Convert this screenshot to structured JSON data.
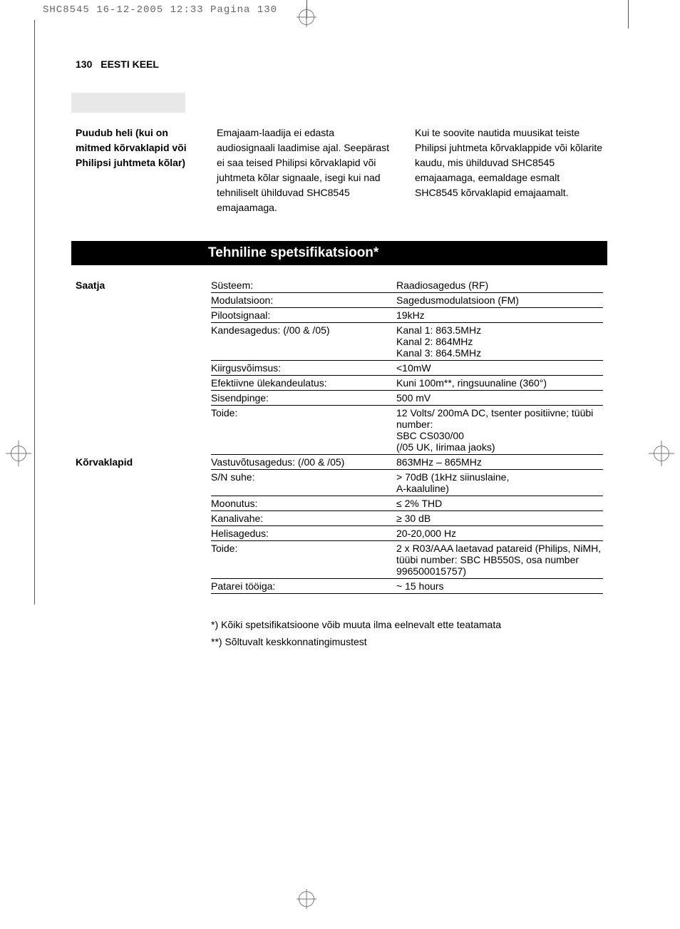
{
  "print_header": "SHC8545  16-12-2005  12:33  Pagina 130",
  "running_head": {
    "page_number": "130",
    "language": "EESTI KEEL"
  },
  "grey_block_color": "#e8e8e8",
  "troubleshoot": {
    "label": "Puudub heli (kui on mitmed kõrvaklapid või Philipsi juhtmeta kõlar)",
    "col1": "Emajaam-laadija ei edasta audiosignaali laadimise ajal. Seepärast ei saa teised Philipsi kõrvaklapid või juhtmeta kõlar signaale, isegi kui nad tehniliselt ühilduvad SHC8545 emajaamaga.",
    "col2": "Kui te soovite nautida muusikat teiste Philipsi juhtmeta kõrvaklappide või kõlarite kaudu, mis ühilduvad SHC8545 emajaamaga, eemaldage esmalt SHC8545 kõrvaklapid emajaamalt."
  },
  "section_title": "Tehniline spetsifikatsioon*",
  "spec": {
    "transmitter": {
      "name": "Saatja",
      "rows": [
        {
          "k": "Süsteem:",
          "v": "Raadiosagedus  (RF)"
        },
        {
          "k": "Modulatsioon:",
          "v": "Sagedusmodulatsioon (FM)"
        },
        {
          "k": "Pilootsignaal:",
          "v": "19kHz"
        },
        {
          "k": "Kandesagedus: (/00 & /05)",
          "v": "Kanal 1: 863.5MHz\nKanal 2: 864MHz\nKanal 3: 864.5MHz"
        },
        {
          "k": "Kiirgusvõimsus:",
          "v": "<10mW"
        },
        {
          "k": "Efektiivne ülekandeulatus:",
          "v": "Kuni 100m**, ringsuunaline (360°)"
        },
        {
          "k": "Sisendpinge:",
          "v": "500 mV"
        },
        {
          "k": "Toide:",
          "v": "12 Volts/ 200mA DC, tsenter positiivne; tüübi number:\nSBC CS030/00\n(/05 UK, Iirimaa jaoks)"
        }
      ]
    },
    "headphones": {
      "name": "Kõrvaklapid",
      "rows": [
        {
          "k": "Vastuvõtusagedus: (/00 & /05)",
          "v": "863MHz – 865MHz"
        },
        {
          "k": "S/N suhe:",
          "v": "> 70dB (1kHz siinuslaine,\nA-kaaluline)"
        },
        {
          "k": "Moonutus:",
          "v": "≤ 2% THD"
        },
        {
          "k": "Kanalivahe:",
          "v": "≥ 30 dB"
        },
        {
          "k": "Helisagedus:",
          "v": "20-20,000 Hz"
        },
        {
          "k": "Toide:",
          "v": "2 x R03/AAA laetavad patareid (Philips, NiMH, tüübi number: SBC HB550S, osa number 996500015757)"
        },
        {
          "k": "Patarei tööiga:",
          "v": "~ 15 hours"
        }
      ]
    }
  },
  "footnotes": {
    "f1": "*)  Kõiki spetsifikatsioone võib muuta ilma eelnevalt ette teatamata",
    "f2": "**) Sõltuvalt keskkonnatingimustest"
  }
}
